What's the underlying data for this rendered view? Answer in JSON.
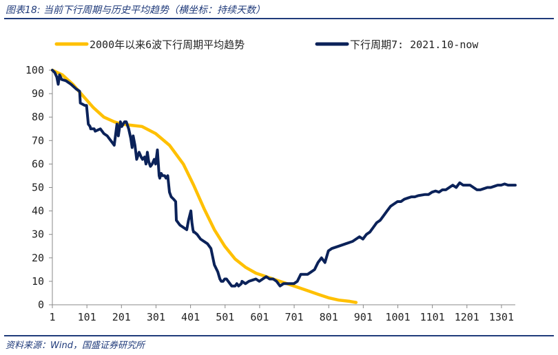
{
  "figure": {
    "title": "图表18: 当前下行周期与历史平均趋势（横坐标：持续天数）",
    "source": "资料来源：Wind，国盛证券研究所"
  },
  "chart_data": {
    "type": "line",
    "title": "",
    "xlabel": "",
    "ylabel": "",
    "xlim": [
      1,
      1341
    ],
    "ylim": [
      0,
      100
    ],
    "x_ticks": [
      1,
      101,
      201,
      301,
      401,
      501,
      601,
      701,
      801,
      901,
      1001,
      1101,
      1201,
      1301
    ],
    "y_ticks": [
      0,
      10,
      20,
      30,
      40,
      50,
      60,
      70,
      80,
      90,
      100
    ],
    "grid": false,
    "legend_position": "top",
    "series": [
      {
        "name": "2000年以来6波下行周期平均趋势",
        "color": "#FFC000",
        "x": [
          1,
          30,
          60,
          90,
          120,
          150,
          180,
          200,
          230,
          260,
          300,
          340,
          380,
          410,
          440,
          470,
          500,
          530,
          560,
          590,
          620,
          650,
          680,
          710,
          740,
          770,
          800,
          830,
          860,
          880
        ],
        "y": [
          100,
          98,
          94,
          89,
          84,
          80,
          78,
          77,
          76.5,
          76,
          73,
          68,
          60,
          51,
          41,
          32,
          25,
          19.5,
          16,
          13.5,
          12,
          10.5,
          9,
          7.5,
          6,
          4.5,
          3,
          2,
          1.5,
          1
        ]
      },
      {
        "name": "下行周期7: 2021.10-now",
        "color": "#0B2259",
        "x": [
          1,
          8,
          14,
          18,
          22,
          28,
          40,
          55,
          70,
          80,
          82,
          95,
          100,
          105,
          110,
          112,
          122,
          125,
          140,
          150,
          160,
          165,
          175,
          180,
          188,
          192,
          196,
          198,
          202,
          206,
          210,
          215,
          222,
          228,
          232,
          235,
          240,
          245,
          252,
          258,
          262,
          268,
          272,
          276,
          280,
          285,
          290,
          296,
          300,
          305,
          310,
          312,
          316,
          320,
          326,
          330,
          335,
          340,
          345,
          352,
          358,
          360,
          370,
          380,
          390,
          395,
          402,
          405,
          408,
          410,
          412,
          420,
          430,
          440,
          450,
          460,
          470,
          480,
          486,
          490,
          495,
          500,
          505,
          510,
          515,
          520,
          530,
          535,
          540,
          548,
          550,
          560,
          570,
          580,
          590,
          600,
          610,
          620,
          630,
          640,
          650,
          655,
          660,
          670,
          680,
          700,
          710,
          720,
          730,
          740,
          750,
          760,
          770,
          780,
          790,
          800,
          810,
          830,
          850,
          870,
          880,
          890,
          900,
          910,
          920,
          930,
          940,
          950,
          960,
          970,
          980,
          990,
          1000,
          1010,
          1020,
          1030,
          1040,
          1050,
          1060,
          1080,
          1090,
          1100,
          1110,
          1120,
          1130,
          1140,
          1150,
          1160,
          1170,
          1180,
          1190,
          1200,
          1210,
          1220,
          1230,
          1240,
          1250,
          1260,
          1270,
          1280,
          1290,
          1300,
          1310,
          1320,
          1330,
          1341
        ],
        "y": [
          100,
          99,
          97,
          94,
          98,
          96,
          95.5,
          94,
          92,
          91,
          86,
          85,
          85,
          77,
          76,
          75,
          75,
          74,
          75,
          73,
          72,
          71,
          69,
          68,
          77,
          72,
          76,
          78,
          76,
          77,
          78,
          78,
          75,
          71,
          67,
          72,
          68,
          62,
          65,
          63,
          62,
          63,
          60,
          65,
          61,
          59,
          60,
          62,
          60,
          66,
          55,
          54,
          56,
          55,
          55,
          54,
          55,
          48,
          46,
          45,
          44,
          36,
          34,
          33,
          32,
          36,
          40,
          35,
          32,
          31,
          31,
          30,
          28,
          27,
          26,
          24,
          17,
          14,
          11,
          10,
          10,
          11,
          11,
          10,
          9,
          8,
          8,
          9,
          8,
          9,
          10,
          9,
          10,
          10.5,
          11,
          10,
          11,
          12,
          11,
          11,
          10,
          9,
          8,
          9,
          9,
          9,
          10,
          13,
          13,
          13,
          14,
          15,
          18,
          20,
          18,
          23,
          24,
          25,
          26,
          27,
          28,
          29,
          28,
          30,
          31,
          33,
          35,
          36,
          38,
          40,
          42,
          43,
          44,
          44,
          45,
          45.5,
          46,
          46,
          46.5,
          47,
          47,
          48,
          48.5,
          48,
          49,
          49,
          50,
          51,
          50,
          52,
          51,
          51,
          51,
          50,
          49,
          49,
          49.5,
          50,
          50,
          50.5,
          51,
          51,
          51.5,
          51,
          51,
          51
        ]
      }
    ]
  }
}
